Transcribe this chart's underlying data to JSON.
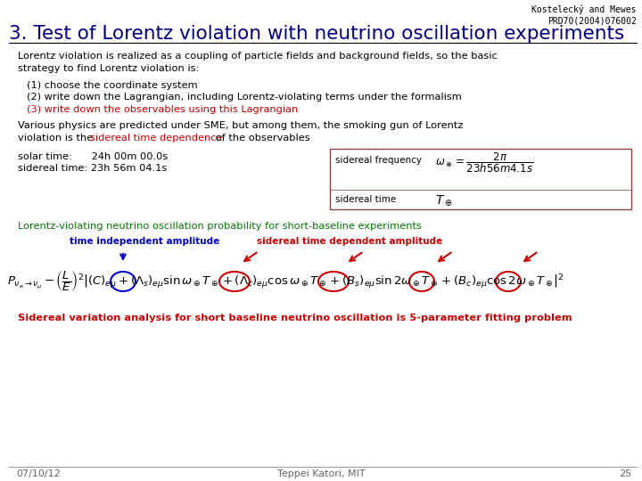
{
  "bg_color": "#ffffff",
  "ref_text": "Kostelecký and Mewes\nPRD70(2004)076002",
  "title": "3. Test of Lorentz violation with neutrino oscillation experiments",
  "title_color": "#000080",
  "ref_color": "#000000",
  "body_color": "#000000",
  "red_color": "#cc0000",
  "green_color": "#007700",
  "blue_color": "#0000cc",
  "footer_date": "07/10/12",
  "footer_center": "Teppei Katori, MIT",
  "footer_page": "25",
  "para1_line1": "Lorentz violation is realized as a coupling of particle fields and background fields, so the basic",
  "para1_line2": "strategy to find Lorentz violation is:",
  "item1": "(1) choose the coordinate system",
  "item2": "(2) write down the Lagrangian, including Lorentz-violating terms under the formalism",
  "item3": "(3) write down the observables using this Lagrangian",
  "p2_line1": "Various physics are predicted under SME, but among them, the smoking gun of Lorentz",
  "p2_line2a": "violation is the ",
  "p2_line2b": "sidereal time dependence",
  "p2_line2c": " of the observables",
  "solar_line1": "solar time:      24h 00m 00.0s",
  "solar_line2": "sidereal time: 23h 56m 04.1s",
  "box_label1": "sidereal frequency",
  "box_label2": "sidereal time",
  "green_line": "Lorentz-violating neutrino oscillation probability for short-baseline experiments",
  "label_blue": "time independent amplitude",
  "label_red": "sidereal time dependent amplitude",
  "bottom_red": "Sidereal variation analysis for short baseline neutrino oscillation is 5-parameter fitting problem"
}
